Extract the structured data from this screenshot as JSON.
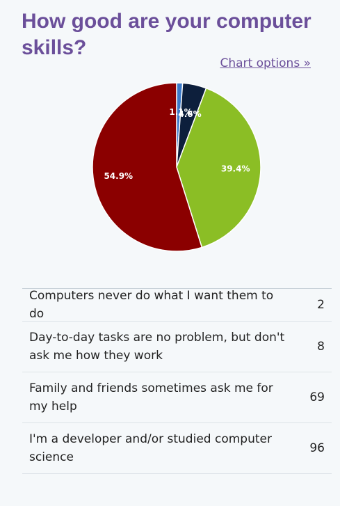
{
  "title": "How good are your computer skills?",
  "chart_options_label": "Chart options »",
  "chart_data": {
    "type": "pie",
    "categories": [
      "Computers never do what I want them to do",
      "Day-to-day tasks are no problem, but don't ask me how they work",
      "Family and friends sometimes ask me for my help",
      "I'm a developer and/or studied computer science"
    ],
    "values": [
      2,
      8,
      69,
      96
    ],
    "percent_labels": [
      "1.1%",
      "4.6%",
      "39.4%",
      "54.9%"
    ],
    "colors": [
      "#3b7ac9",
      "#0d1f3c",
      "#8bbe25",
      "#8b0000"
    ]
  },
  "table": {
    "rows": [
      {
        "label": "Computers never do what I want them to do",
        "count": "2"
      },
      {
        "label": "Day-to-day tasks are no problem, but don't ask me how they work",
        "count": "8"
      },
      {
        "label": "Family and friends sometimes ask me for my help",
        "count": "69"
      },
      {
        "label": "I'm a developer and/or studied computer science",
        "count": "96"
      }
    ]
  }
}
